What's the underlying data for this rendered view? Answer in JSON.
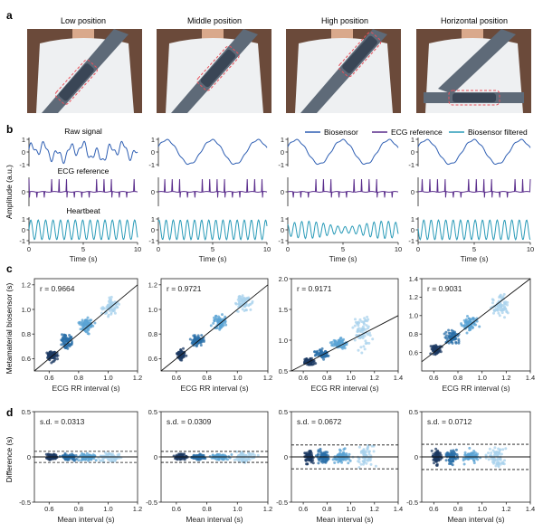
{
  "panel_labels": [
    "a",
    "b",
    "c",
    "d"
  ],
  "photos": {
    "titles": [
      "Low position",
      "Middle position",
      "High position",
      "Horizontal position"
    ],
    "colors": {
      "background": "#6b4a3a",
      "shirt": "#eef0f2",
      "belt": "#5e6a78",
      "sensor": "#3a4656",
      "outline": "#e8505b",
      "skin": "#d9a98c"
    }
  },
  "legend": [
    "Biosensor",
    "ECG reference",
    "Biosensor filtered"
  ],
  "colors": {
    "biosensor": "#2f5fb3",
    "ecg": "#5a2d8c",
    "filtered": "#2a9bb8",
    "scatter": [
      "#1c3a63",
      "#2a6fa8",
      "#5aa3d4",
      "#a8d2ec"
    ]
  },
  "strings": {
    "raw_signal": "Raw signal",
    "ecg_reference": "ECG reference",
    "heartbeat": "Heartbeat",
    "amplitude_label": "Amplitude (a.u.)",
    "time_label": "Time (s)",
    "c_ylabel": "Metamaterial biosensor (s)",
    "c_xlabel": "ECG RR interval (s)",
    "d_ylabel": "Difference (s)",
    "d_xlabel": "Mean interval (s)"
  },
  "chart_data": [
    {
      "type": "line",
      "panel": "b",
      "rows": [
        "Raw signal",
        "ECG reference",
        "Heartbeat"
      ],
      "xlabel": "Time (s)",
      "ylabel": "Amplitude (a.u.)",
      "xlim": [
        0,
        10
      ],
      "ylim": [
        -1,
        1
      ],
      "xticks": [
        0,
        5,
        10
      ],
      "yticks": [
        -1,
        0,
        1
      ],
      "series": [
        {
          "name": "Biosensor",
          "columns": [
            "Low position",
            "Middle position",
            "High position",
            "Horizontal position"
          ]
        },
        {
          "name": "ECG reference",
          "columns": [
            "Low position",
            "Middle position",
            "High position",
            "Horizontal position"
          ]
        },
        {
          "name": "Biosensor filtered",
          "columns": [
            "Low position",
            "Middle position",
            "High position",
            "Horizontal position"
          ]
        }
      ]
    },
    {
      "type": "scatter",
      "panel": "c",
      "xlabel": "ECG RR interval (s)",
      "ylabel": "Metamaterial biosensor (s)",
      "plots": [
        {
          "r_label": "r = 0.9664",
          "xlim": [
            0.5,
            1.2
          ],
          "ylim": [
            0.5,
            1.25
          ],
          "xticks": [
            0.6,
            0.8,
            1.0,
            1.2
          ],
          "yticks": [
            0.6,
            0.8,
            1.0,
            1.2
          ],
          "clusters": [
            {
              "x": 0.62,
              "y": 0.62
            },
            {
              "x": 0.72,
              "y": 0.74
            },
            {
              "x": 0.85,
              "y": 0.87
            },
            {
              "x": 1.02,
              "y": 1.02
            }
          ]
        },
        {
          "r_label": "r = 0.9721",
          "xlim": [
            0.5,
            1.2
          ],
          "ylim": [
            0.5,
            1.25
          ],
          "xticks": [
            0.6,
            0.8,
            1.0,
            1.2
          ],
          "yticks": [
            0.6,
            0.8,
            1.0,
            1.2
          ],
          "clusters": [
            {
              "x": 0.63,
              "y": 0.63
            },
            {
              "x": 0.74,
              "y": 0.75
            },
            {
              "x": 0.88,
              "y": 0.9
            },
            {
              "x": 1.04,
              "y": 1.05
            }
          ]
        },
        {
          "r_label": "r = 0.9171",
          "xlim": [
            0.5,
            1.4
          ],
          "ylim": [
            0.5,
            2.0
          ],
          "xticks": [
            0.6,
            0.8,
            1.0,
            1.2,
            1.4
          ],
          "yticks": [
            0.5,
            1.0,
            1.5,
            2.0
          ],
          "clusters": [
            {
              "x": 0.65,
              "y": 0.65
            },
            {
              "x": 0.76,
              "y": 0.77
            },
            {
              "x": 0.9,
              "y": 0.95
            },
            {
              "x": 1.1,
              "y": 1.15
            }
          ]
        },
        {
          "r_label": "r = 0.9031",
          "xlim": [
            0.5,
            1.4
          ],
          "ylim": [
            0.4,
            1.4
          ],
          "xticks": [
            0.6,
            0.8,
            1.0,
            1.2,
            1.4
          ],
          "yticks": [
            0.6,
            0.8,
            1.0,
            1.2,
            1.4
          ],
          "clusters": [
            {
              "x": 0.62,
              "y": 0.63
            },
            {
              "x": 0.75,
              "y": 0.76
            },
            {
              "x": 0.9,
              "y": 0.92
            },
            {
              "x": 1.15,
              "y": 1.1
            }
          ]
        }
      ]
    },
    {
      "type": "scatter",
      "panel": "d",
      "xlabel": "Mean interval (s)",
      "ylabel": "Difference (s)",
      "ylim": [
        -0.5,
        0.5
      ],
      "yticks": [
        -0.5,
        0,
        0.5
      ],
      "plots": [
        {
          "sd_label": "s.d. = 0.0313",
          "sd": 0.0313,
          "xlim": [
            0.5,
            1.2
          ],
          "xticks": [
            0.6,
            0.8,
            1.0,
            1.2
          ]
        },
        {
          "sd_label": "s.d. = 0.0309",
          "sd": 0.0309,
          "xlim": [
            0.5,
            1.2
          ],
          "xticks": [
            0.6,
            0.8,
            1.0,
            1.2
          ]
        },
        {
          "sd_label": "s.d. = 0.0672",
          "sd": 0.0672,
          "xlim": [
            0.5,
            1.4
          ],
          "xticks": [
            0.6,
            0.8,
            1.0,
            1.2,
            1.4
          ]
        },
        {
          "sd_label": "s.d. = 0.0712",
          "sd": 0.0712,
          "xlim": [
            0.5,
            1.4
          ],
          "xticks": [
            0.6,
            0.8,
            1.0,
            1.2,
            1.4
          ]
        }
      ]
    }
  ]
}
